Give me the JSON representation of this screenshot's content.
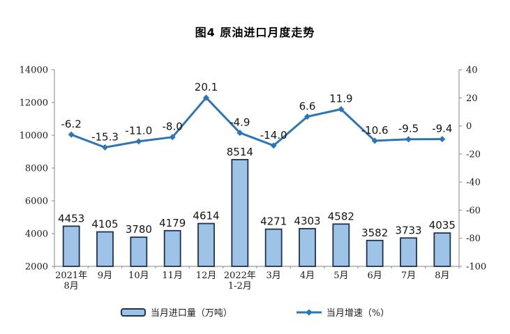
{
  "page": {
    "title": "图4 原油进口月度走势"
  },
  "legend": {
    "bar_label": "当月进口量（万吨）",
    "line_label": "当月增速（%）"
  },
  "colors": {
    "bar_fill": "#9DC3E6",
    "bar_border": "#1F3050",
    "line": "#2E75B6",
    "axis": "#999999",
    "label_text": "#141414"
  },
  "chart_data": {
    "type": "combo",
    "title": "图4 原油进口月度走势",
    "grid": false,
    "legend_position": "bottom",
    "categories": [
      [
        "2021年",
        "8月"
      ],
      [
        "9月"
      ],
      [
        "10月"
      ],
      [
        "11月"
      ],
      [
        "12月"
      ],
      [
        "2022年",
        "1-2月"
      ],
      [
        "3月"
      ],
      [
        "4月"
      ],
      [
        "5月"
      ],
      [
        "6月"
      ],
      [
        "7月"
      ],
      [
        "8月"
      ]
    ],
    "series": [
      {
        "name": "当月进口量（万吨）",
        "type": "bar",
        "axis": "left",
        "values": [
          4453,
          4105,
          3780,
          4179,
          4614,
          8514,
          4271,
          4303,
          4582,
          3582,
          3733,
          4035
        ],
        "labels": [
          "4453",
          "4105",
          "3780",
          "4179",
          "4614",
          "8514",
          "4271",
          "4303",
          "4582",
          "3582",
          "3733",
          "4035"
        ]
      },
      {
        "name": "当月增速（%）",
        "type": "line",
        "axis": "right",
        "values": [
          -6.2,
          -15.3,
          -11.0,
          -8.0,
          20.1,
          -4.9,
          -14.0,
          6.6,
          11.9,
          -10.6,
          -9.5,
          -9.4
        ],
        "labels": [
          "-6.2",
          "-15.3",
          "-11.0",
          "-8.0",
          "20.1",
          "-4.9",
          "-14.0",
          "6.6",
          "11.9",
          "-10.6",
          "-9.5",
          "-9.4"
        ]
      }
    ],
    "left_axis": {
      "min": 2000,
      "max": 14000,
      "ticks": [
        2000,
        4000,
        6000,
        8000,
        10000,
        12000,
        14000
      ]
    },
    "right_axis": {
      "min": -100,
      "max": 40,
      "ticks": [
        -100,
        -80,
        -60,
        -40,
        -20,
        0,
        20,
        40
      ]
    }
  }
}
